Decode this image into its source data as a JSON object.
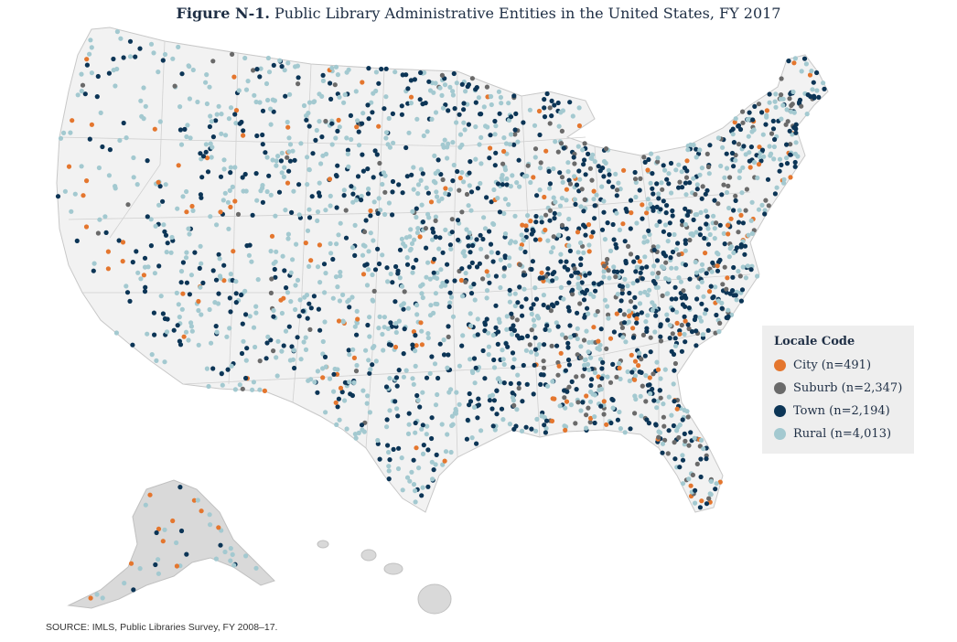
{
  "figure": {
    "label": "Figure N-1.",
    "title": "Public Library Administrative Entities in the United States, FY 2017"
  },
  "legend": {
    "title": "Locale Code",
    "items": [
      {
        "key": "city",
        "label": "City (n=491)",
        "color": "#e4762e"
      },
      {
        "key": "suburb",
        "label": "Suburb (n=2,347)",
        "color": "#6a6a6a"
      },
      {
        "key": "town",
        "label": "Town (n=2,194)",
        "color": "#0c3556"
      },
      {
        "key": "rural",
        "label": "Rural (n=4,013)",
        "color": "#a3c9d0"
      }
    ]
  },
  "source": "SOURCE: IMLS, Public Libraries Survey, FY 2008–17.",
  "colors": {
    "land": "#f2f2f2",
    "border": "#c8c8c8",
    "alaska_hawaii": "#d9d9d9"
  }
}
